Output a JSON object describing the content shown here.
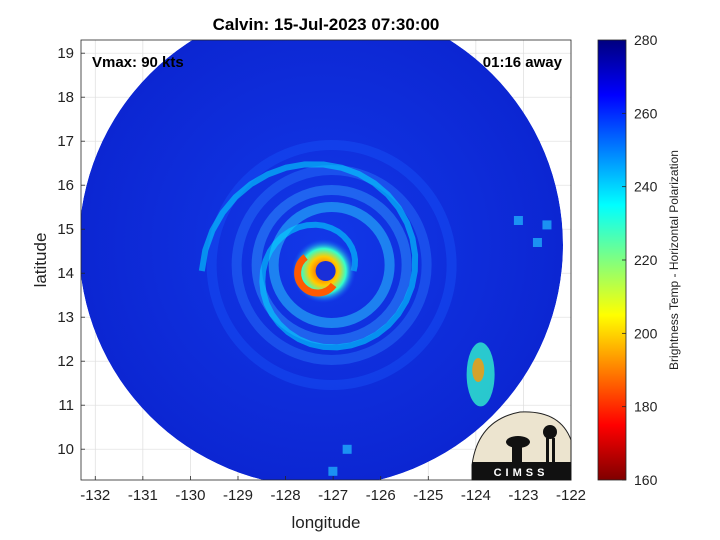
{
  "chart_data": {
    "type": "heatmap",
    "title": "Calvin: 15-Jul-2023 07:30:00",
    "xlabel": "longitude",
    "ylabel": "latitude",
    "xlim": [
      -132.3,
      -122
    ],
    "ylim": [
      9.3,
      19.3
    ],
    "x_ticks": [
      -132,
      -131,
      -130,
      -129,
      -128,
      -127,
      -126,
      -125,
      -124,
      -123,
      -122
    ],
    "y_ticks": [
      10,
      11,
      12,
      13,
      14,
      15,
      16,
      17,
      18,
      19
    ],
    "grid": true,
    "colorbar": {
      "label": "Brightness Temp - Horizontal Polarization",
      "range": [
        160,
        280
      ],
      "ticks": [
        160,
        180,
        200,
        220,
        240,
        260,
        280
      ],
      "colormap": "jet"
    },
    "storm_center": {
      "lon": -127.2,
      "lat": 14.05
    },
    "eye_min_temp": 195,
    "annotations": {
      "vmax": "Vmax: 90 kts",
      "time_away": "01:16 away"
    },
    "logo_text": "CIMSS"
  }
}
